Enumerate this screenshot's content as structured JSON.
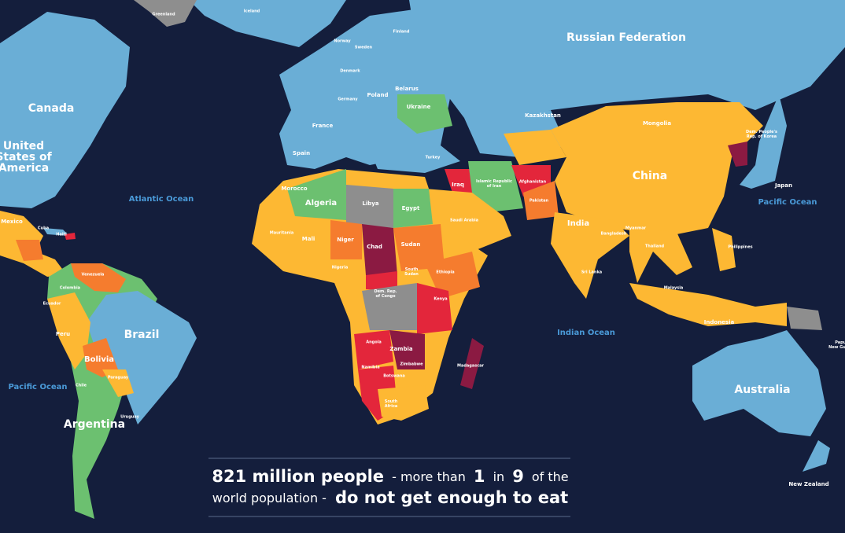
{
  "labels": {
    "canada": "Canada",
    "usa": [
      "United",
      "States of",
      "America"
    ],
    "mexico": "Mexico",
    "cuba": "Cuba",
    "haiti": "Haiti",
    "greenland": "Greenland",
    "iceland": "Iceland",
    "norway": "Norway",
    "sweden": "Sweden",
    "finland": "Finland",
    "denmark": "Denmark",
    "poland": "Poland",
    "belarus": "Belarus",
    "germany": "Germany",
    "ukraine": "Ukraine",
    "france": "France",
    "spain": "Spain",
    "turkey": "Turkey",
    "russia": "Russian Federation",
    "kazakhstan": "Kazakhstan",
    "mongolia": "Mongolia",
    "china": "China",
    "india": "India",
    "japan": "Japan",
    "dprk": [
      "Dem. People's",
      "Rep. of Korea"
    ],
    "afghanistan": "Afghanistan",
    "pakistan": "Pakistan",
    "iraq": "Iraq",
    "iran": [
      "Islamic Republic",
      "of Iran"
    ],
    "saudi": "Saudi Arabia",
    "algeria": "Algeria",
    "libya": "Libya",
    "egypt": "Egypt",
    "morocco": "Morocco",
    "mali": "Mali",
    "niger": "Niger",
    "chad": "Chad",
    "sudan": "Sudan",
    "mauritania": "Mauritania",
    "nigeria": "Nigeria",
    "ethiopia": "Ethiopia",
    "south_sudan": [
      "South",
      "Sudan"
    ],
    "kenya": "Kenya",
    "drc": [
      "Dem. Rep.",
      "of Congo"
    ],
    "angola": "Angola",
    "zambia": "Zambia",
    "namibia": "Namibia",
    "botswana": "Botswana",
    "south_africa": [
      "South",
      "Africa"
    ],
    "madagascar": "Madagascar",
    "zimbabwe": "Zimbabwe",
    "brazil": "Brazil",
    "bolivia": "Bolivia",
    "peru": "Peru",
    "colombia": "Colombia",
    "venezuela": "Venezuela",
    "argentina": "Argentina",
    "chile": "Chile",
    "paraguay": "Paraguay",
    "uruguay": "Uruguay",
    "ecuador": "Ecuador",
    "australia": "Australia",
    "new_zealand": "New Zealand",
    "indonesia": "Indonesia",
    "philippines": "Philippines",
    "thailand": "Thailand",
    "malaysia": "Malaysia",
    "png": [
      "Papua",
      "New Guinea"
    ],
    "bangladesh": "Bangladesh",
    "myanmar": "Myanmar",
    "sri_lanka": "Sri Lanka"
  },
  "oceans": {
    "atlantic": "Atlantic Ocean",
    "pacific_w": "Pacific Ocean",
    "pacific_e": "Pacific Ocean",
    "indian": "Indian Ocean"
  },
  "caption": {
    "line1": [
      "821 million people",
      "- more than",
      "1",
      "in",
      "9",
      "of the"
    ],
    "line2": [
      "world population -",
      "do not get enough to eat"
    ]
  }
}
